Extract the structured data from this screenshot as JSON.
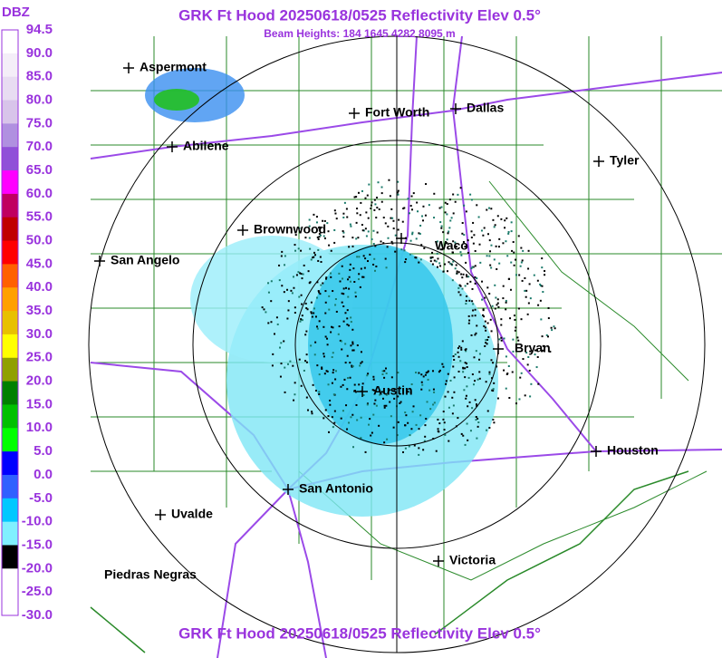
{
  "header": {
    "title": "GRK Ft Hood 20250618/0525 Reflectivity Elev 0.5°",
    "subtitle": "Beam Heights: 184 1645 4282 8095 m"
  },
  "legend": {
    "unit": "DBZ",
    "labels": [
      "94.5",
      "90.0",
      "85.0",
      "80.0",
      "75.0",
      "70.0",
      "65.0",
      "60.0",
      "55.0",
      "50.0",
      "45.0",
      "40.0",
      "35.0",
      "30.0",
      "25.0",
      "20.0",
      "15.0",
      "10.0",
      "5.0",
      "0.0",
      "-5.0",
      "-10.0",
      "-15.0",
      "-20.0",
      "-25.0",
      "-30.0"
    ],
    "colors": [
      "#ffffff",
      "#f4eef8",
      "#e8dcf2",
      "#d8c4ea",
      "#b090e0",
      "#9050d8",
      "#ff00ff",
      "#c00060",
      "#c00000",
      "#ff0000",
      "#ff6000",
      "#ffa000",
      "#e8c000",
      "#ffff00",
      "#90a000",
      "#008000",
      "#00c000",
      "#00ff00",
      "#0000ff",
      "#3060ff",
      "#00c8ff",
      "#80f0ff",
      "#000000",
      "#ffffff",
      "#ffffff"
    ]
  },
  "cities": [
    {
      "name": "Aspermont"
    },
    {
      "name": "Fort Worth"
    },
    {
      "name": "Dallas"
    },
    {
      "name": "Abilene"
    },
    {
      "name": "Tyler"
    },
    {
      "name": "Brownwood"
    },
    {
      "name": "Waco"
    },
    {
      "name": "San Angelo"
    },
    {
      "name": "Bryan"
    },
    {
      "name": "Austin"
    },
    {
      "name": "Houston"
    },
    {
      "name": "San Antonio"
    },
    {
      "name": "Uvalde"
    },
    {
      "name": "Victoria"
    },
    {
      "name": "Piedras Negras"
    }
  ],
  "footer": {
    "title": "GRK Ft Hood 20250618/0525 Reflectivity Elev 0.5°"
  }
}
